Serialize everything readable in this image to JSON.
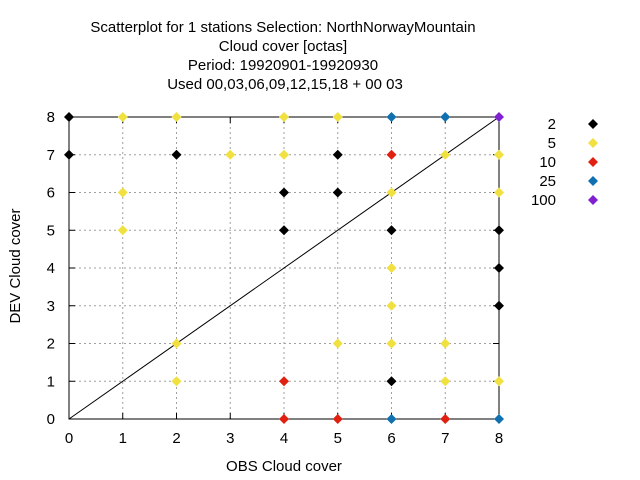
{
  "chart_data": {
    "type": "scatter",
    "title_lines": [
      "Scatterplot for    1 stations Selection: NorthNorwayMountain",
      "Cloud cover [octas]",
      "Period: 19920901-19920930",
      "Used  00,03,06,09,12,15,18  + 00 03"
    ],
    "xlabel": "OBS Cloud cover",
    "ylabel": "DEV Cloud cover",
    "xlim": [
      0,
      8
    ],
    "ylim": [
      0,
      8
    ],
    "xticks": [
      0,
      1,
      2,
      3,
      4,
      5,
      6,
      7,
      8
    ],
    "yticks": [
      0,
      1,
      2,
      3,
      4,
      5,
      6,
      7,
      8
    ],
    "grid": true,
    "diagonal_line": true,
    "legend_placement": "right",
    "series": [
      {
        "name": "2",
        "color": "#000000",
        "points": [
          [
            0,
            8
          ],
          [
            0,
            7
          ],
          [
            2,
            7
          ],
          [
            4,
            6
          ],
          [
            5,
            6
          ],
          [
            5,
            7
          ],
          [
            4,
            5
          ],
          [
            6,
            5
          ],
          [
            6,
            1
          ],
          [
            8,
            5
          ],
          [
            8,
            4
          ],
          [
            8,
            3
          ]
        ]
      },
      {
        "name": "5",
        "color": "#f0e040",
        "points": [
          [
            1,
            8
          ],
          [
            2,
            8
          ],
          [
            4,
            8
          ],
          [
            5,
            8
          ],
          [
            3,
            7
          ],
          [
            4,
            7
          ],
          [
            7,
            7
          ],
          [
            8,
            7
          ],
          [
            1,
            6
          ],
          [
            6,
            6
          ],
          [
            8,
            6
          ],
          [
            1,
            5
          ],
          [
            6,
            4
          ],
          [
            6,
            3
          ],
          [
            2,
            2
          ],
          [
            5,
            2
          ],
          [
            6,
            2
          ],
          [
            7,
            2
          ],
          [
            2,
            1
          ],
          [
            7,
            1
          ],
          [
            8,
            1
          ]
        ]
      },
      {
        "name": "10",
        "color": "#e02010",
        "points": [
          [
            6,
            7
          ],
          [
            4,
            1
          ],
          [
            4,
            0
          ],
          [
            5,
            0
          ],
          [
            7,
            0
          ]
        ]
      },
      {
        "name": "25",
        "color": "#1070b0",
        "points": [
          [
            6,
            8
          ],
          [
            7,
            8
          ],
          [
            6,
            0
          ],
          [
            8,
            0
          ]
        ]
      },
      {
        "name": "100",
        "color": "#8020d0",
        "points": [
          [
            8,
            8
          ]
        ]
      }
    ]
  }
}
